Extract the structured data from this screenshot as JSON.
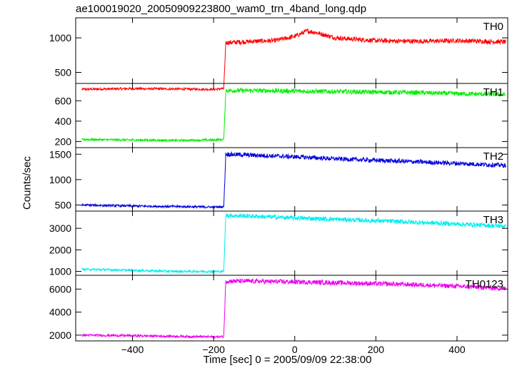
{
  "chart_data": {
    "type": "line",
    "title": "ae100019020_20050909223800_wam0_trn_4band_long.qdp",
    "xlabel": "Time [sec] 0 = 2005/09/09 22:38:00",
    "ylabel": "Counts/sec",
    "xlim": [
      -540,
      525
    ],
    "x_ticks": [
      -400,
      -200,
      0,
      200,
      400
    ],
    "x_tick_labels": [
      "−400",
      "−200",
      "0",
      "200",
      "400"
    ],
    "grid": false,
    "panels": [
      {
        "name": "TH0",
        "color": "#ff0000",
        "ylim": [
          340,
          1290
        ],
        "y_ticks": [
          500,
          1000
        ],
        "y_tick_labels": [
          "500",
          "1000"
        ],
        "series": [
          {
            "x": -525,
            "y": 255
          },
          {
            "x": -400,
            "y": 265
          },
          {
            "x": -300,
            "y": 260
          },
          {
            "x": -200,
            "y": 255
          },
          {
            "x": -175,
            "y": 265
          },
          {
            "x": -170,
            "y": 930
          },
          {
            "x": -100,
            "y": 950
          },
          {
            "x": -50,
            "y": 960
          },
          {
            "x": 0,
            "y": 1020
          },
          {
            "x": 30,
            "y": 1100
          },
          {
            "x": 50,
            "y": 1080
          },
          {
            "x": 100,
            "y": 1000
          },
          {
            "x": 200,
            "y": 960
          },
          {
            "x": 300,
            "y": 950
          },
          {
            "x": 400,
            "y": 960
          },
          {
            "x": 520,
            "y": 940
          }
        ]
      },
      {
        "name": "TH1",
        "color": "#00ee00",
        "ylim": [
          140,
          770
        ],
        "y_ticks": [
          200,
          400,
          600
        ],
        "y_tick_labels": [
          "200",
          "400",
          "600"
        ],
        "series": [
          {
            "x": -525,
            "y": 220
          },
          {
            "x": -400,
            "y": 215
          },
          {
            "x": -300,
            "y": 210
          },
          {
            "x": -200,
            "y": 215
          },
          {
            "x": -175,
            "y": 220
          },
          {
            "x": -170,
            "y": 700
          },
          {
            "x": -100,
            "y": 700
          },
          {
            "x": 0,
            "y": 695
          },
          {
            "x": 100,
            "y": 690
          },
          {
            "x": 200,
            "y": 685
          },
          {
            "x": 300,
            "y": 680
          },
          {
            "x": 400,
            "y": 670
          },
          {
            "x": 520,
            "y": 660
          }
        ]
      },
      {
        "name": "TH2",
        "color": "#0000dd",
        "ylim": [
          380,
          1630
        ],
        "y_ticks": [
          500,
          1000,
          1500
        ],
        "y_tick_labels": [
          "500",
          "1000",
          "1500"
        ],
        "series": [
          {
            "x": -525,
            "y": 500
          },
          {
            "x": -400,
            "y": 480
          },
          {
            "x": -300,
            "y": 470
          },
          {
            "x": -200,
            "y": 460
          },
          {
            "x": -175,
            "y": 465
          },
          {
            "x": -170,
            "y": 1500
          },
          {
            "x": -100,
            "y": 1480
          },
          {
            "x": 0,
            "y": 1450
          },
          {
            "x": 100,
            "y": 1410
          },
          {
            "x": 200,
            "y": 1380
          },
          {
            "x": 300,
            "y": 1350
          },
          {
            "x": 400,
            "y": 1320
          },
          {
            "x": 520,
            "y": 1280
          }
        ]
      },
      {
        "name": "TH3",
        "color": "#00eeee",
        "ylim": [
          820,
          3800
        ],
        "y_ticks": [
          1000,
          2000,
          3000
        ],
        "y_tick_labels": [
          "1000",
          "2000",
          "3000"
        ],
        "series": [
          {
            "x": -525,
            "y": 1100
          },
          {
            "x": -400,
            "y": 1050
          },
          {
            "x": -300,
            "y": 1000
          },
          {
            "x": -200,
            "y": 1000
          },
          {
            "x": -175,
            "y": 1000
          },
          {
            "x": -170,
            "y": 3600
          },
          {
            "x": -100,
            "y": 3560
          },
          {
            "x": 0,
            "y": 3480
          },
          {
            "x": 100,
            "y": 3420
          },
          {
            "x": 200,
            "y": 3350
          },
          {
            "x": 300,
            "y": 3280
          },
          {
            "x": 400,
            "y": 3200
          },
          {
            "x": 520,
            "y": 3100
          }
        ]
      },
      {
        "name": "TH0123",
        "color": "#ee00ee",
        "ylim": [
          1500,
          7200
        ],
        "y_ticks": [
          2000,
          4000,
          6000
        ],
        "y_tick_labels": [
          "2000",
          "4000",
          "6000"
        ],
        "series": [
          {
            "x": -525,
            "y": 2000
          },
          {
            "x": -400,
            "y": 1950
          },
          {
            "x": -300,
            "y": 1900
          },
          {
            "x": -200,
            "y": 1850
          },
          {
            "x": -175,
            "y": 1870
          },
          {
            "x": -170,
            "y": 6700
          },
          {
            "x": -100,
            "y": 6680
          },
          {
            "x": 0,
            "y": 6620
          },
          {
            "x": 100,
            "y": 6560
          },
          {
            "x": 200,
            "y": 6470
          },
          {
            "x": 300,
            "y": 6380
          },
          {
            "x": 400,
            "y": 6250
          },
          {
            "x": 520,
            "y": 6050
          }
        ]
      }
    ]
  }
}
